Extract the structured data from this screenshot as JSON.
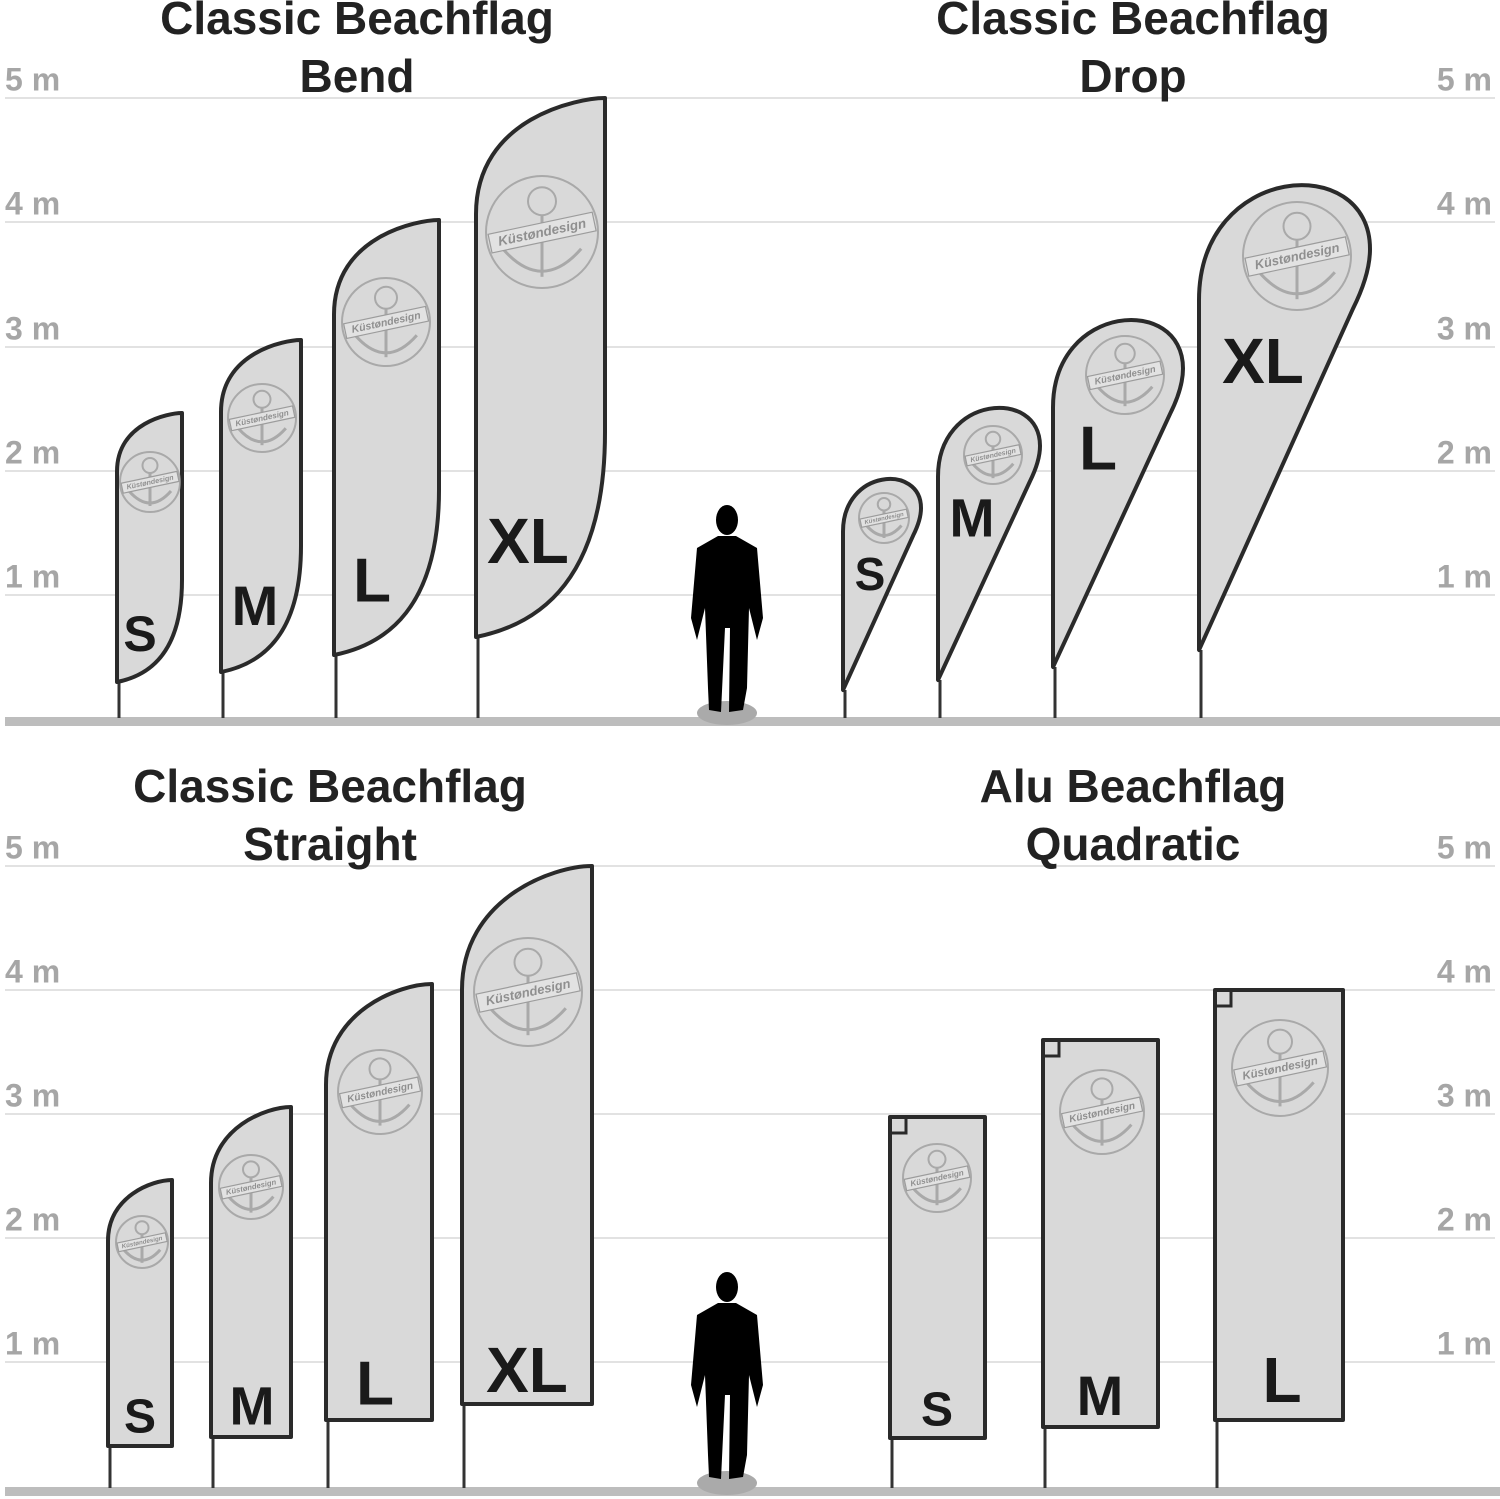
{
  "rows": [
    {
      "scale": [
        "5 m",
        "4 m",
        "3 m",
        "2 m",
        "1 m"
      ],
      "panels": [
        {
          "title": [
            "Classic Beachflag",
            "Bend"
          ],
          "flags": [
            "S",
            "M",
            "L",
            "XL"
          ]
        },
        {
          "title": [
            "Classic Beachflag",
            "Drop"
          ],
          "flags": [
            "S",
            "M",
            "L",
            "XL"
          ]
        }
      ]
    },
    {
      "scale": [
        "5 m",
        "4 m",
        "3 m",
        "2 m",
        "1 m"
      ],
      "panels": [
        {
          "title": [
            "Classic Beachflag",
            "Straight"
          ],
          "flags": [
            "S",
            "M",
            "L",
            "XL"
          ]
        },
        {
          "title": [
            "Alu Beachflag",
            "Quadratic"
          ],
          "flags": [
            "S",
            "M",
            "L"
          ]
        }
      ]
    }
  ],
  "brand": "Küstøndesign"
}
